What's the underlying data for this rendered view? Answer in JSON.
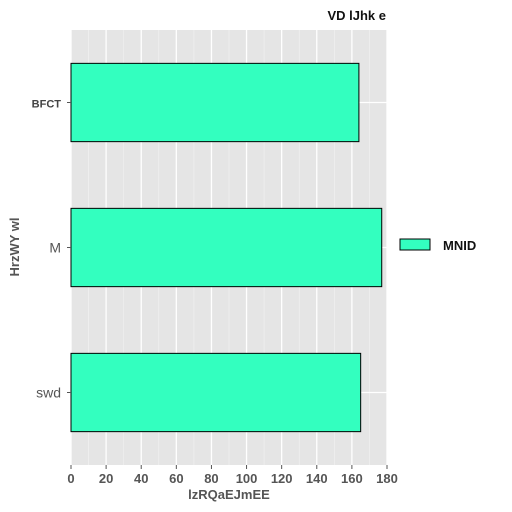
{
  "chart_data": {
    "type": "bar",
    "orientation": "horizontal",
    "title": "VD lJhk e",
    "xlabel": "lzRQaEJmEE",
    "ylabel": "HrzWY wl",
    "categories": [
      "BFCT",
      "M",
      "swd"
    ],
    "series": [
      {
        "name": "MNID",
        "values": [
          164,
          177,
          165
        ],
        "color": "#33ffbf"
      }
    ],
    "xlim": [
      0,
      180
    ],
    "xticks": [
      "0",
      "20",
      "40",
      "60",
      "80",
      "100",
      "120",
      "140",
      "160",
      "180"
    ],
    "grid": true,
    "legend_position": "right",
    "background": "#e5e5e5"
  }
}
